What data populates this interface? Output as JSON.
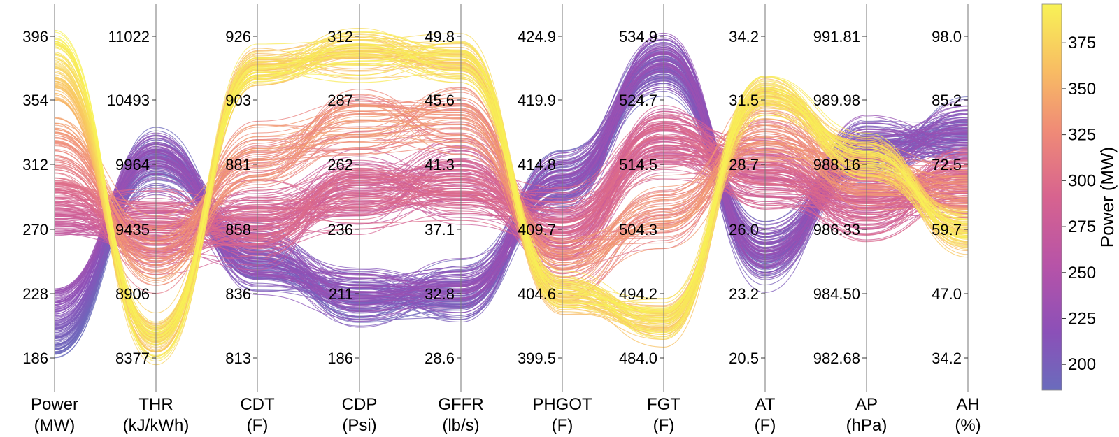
{
  "chart_data": {
    "type": "parallel_coordinates",
    "color_variable": "Power (MW)",
    "line_count": 400,
    "axes": [
      {
        "name": "Power",
        "unit": "(MW)",
        "ticks": [
          "396",
          "354",
          "312",
          "270",
          "228",
          "186"
        ]
      },
      {
        "name": "THR",
        "unit": "(kJ/kWh)",
        "ticks": [
          "11022",
          "10493",
          "9964",
          "9435",
          "8906",
          "8377"
        ]
      },
      {
        "name": "CDT",
        "unit": "(F)",
        "ticks": [
          "926",
          "903",
          "881",
          "858",
          "836",
          "813"
        ]
      },
      {
        "name": "CDP",
        "unit": "(Psi)",
        "ticks": [
          "312",
          "287",
          "262",
          "236",
          "211",
          "186"
        ]
      },
      {
        "name": "GFFR",
        "unit": "(lb/s)",
        "ticks": [
          "49.8",
          "45.6",
          "41.3",
          "37.1",
          "32.8",
          "28.6"
        ]
      },
      {
        "name": "PHGOT",
        "unit": "(F)",
        "ticks": [
          "424.9",
          "419.9",
          "414.8",
          "409.7",
          "404.6",
          "399.5"
        ]
      },
      {
        "name": "FGT",
        "unit": "(F)",
        "ticks": [
          "534.9",
          "524.7",
          "514.5",
          "504.3",
          "494.2",
          "484.0"
        ]
      },
      {
        "name": "AT",
        "unit": "(F)",
        "ticks": [
          "34.2",
          "31.5",
          "28.7",
          "26.0",
          "23.2",
          "20.5"
        ]
      },
      {
        "name": "AP",
        "unit": "(hPa)",
        "ticks": [
          "991.81",
          "989.98",
          "988.16",
          "986.33",
          "984.50",
          "982.68"
        ]
      },
      {
        "name": "AH",
        "unit": "(%)",
        "ticks": [
          "98.0",
          "85.2",
          "72.5",
          "59.7",
          "47.0",
          "34.2"
        ]
      }
    ],
    "colorbar": {
      "title": "Power (MW)",
      "ticks": [
        "375",
        "350",
        "325",
        "300",
        "275",
        "250",
        "225",
        "200"
      ],
      "range": [
        186,
        396
      ],
      "colormap": "plasma"
    }
  }
}
